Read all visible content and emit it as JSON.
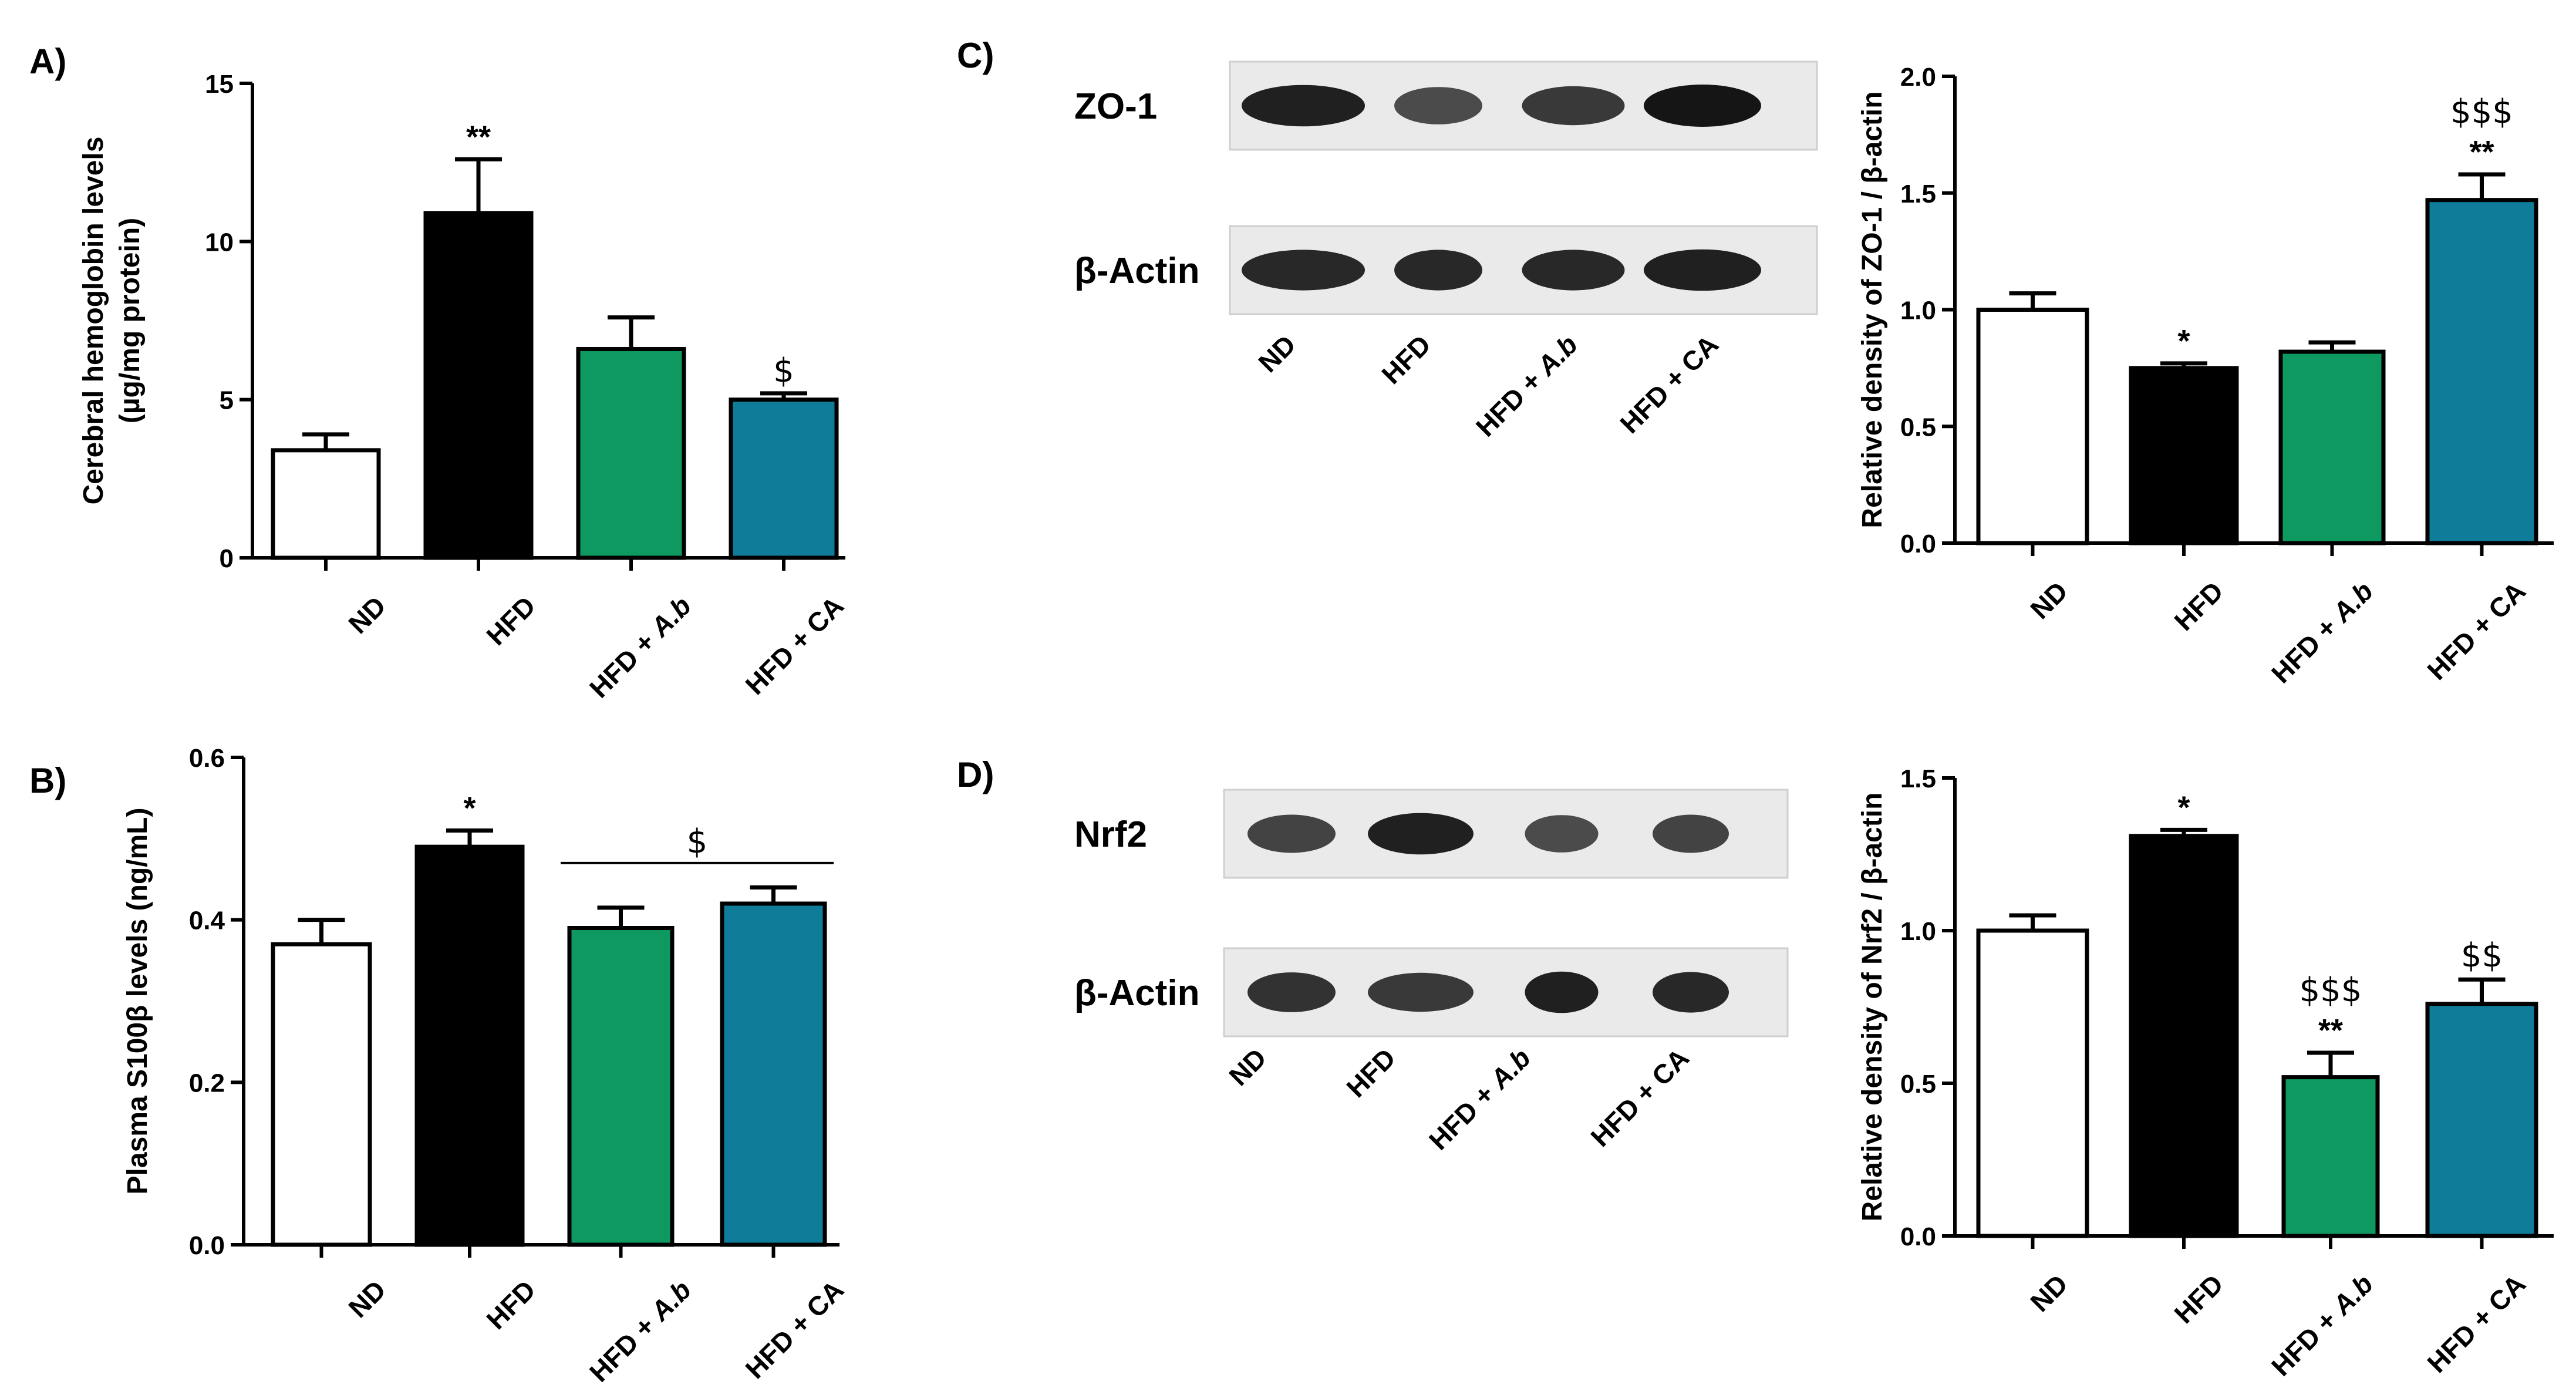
{
  "colors": {
    "ND": "#ffffff",
    "HFD": "#000000",
    "HFD_Ab": "#0e9960",
    "HFD_CA": "#0f7d99"
  },
  "chart_data": [
    {
      "panel": "A)",
      "type": "bar",
      "ylabel_lines": [
        "Cerebral hemoglobin levels",
        "(µg/mg protein)"
      ],
      "categories": [
        "ND",
        "HFD",
        "HFD + A.b",
        "HFD + CA"
      ],
      "values": [
        3.4,
        10.9,
        6.6,
        5.0
      ],
      "errors": [
        0.5,
        1.7,
        1.0,
        0.2
      ],
      "annotations": [
        "",
        "**",
        "",
        "$"
      ],
      "ylim": [
        0,
        15
      ],
      "yticks": [
        0,
        5,
        10,
        15
      ],
      "ytick_labels": [
        "0",
        "5",
        "10",
        "15"
      ]
    },
    {
      "panel": "B)",
      "type": "bar",
      "ylabel": "Plasma S100β levels (ng/mL)",
      "categories": [
        "ND",
        "HFD",
        "HFD + A.b",
        "HFD + CA"
      ],
      "values": [
        0.37,
        0.49,
        0.39,
        0.42
      ],
      "errors": [
        0.03,
        0.02,
        0.025,
        0.02
      ],
      "annotations": [
        "",
        "*",
        "",
        ""
      ],
      "group_annotation": "$",
      "ylim": [
        0,
        0.6
      ],
      "yticks": [
        0,
        0.2,
        0.4,
        0.6
      ],
      "ytick_labels": [
        "0.0",
        "0.2",
        "0.4",
        "0.6"
      ]
    },
    {
      "panel": "C)",
      "type": "bar",
      "ylabel": "Relative density of ZO-1 / β-actin",
      "blot_labels": [
        "ZO-1",
        "β-Actin"
      ],
      "categories": [
        "ND",
        "HFD",
        "HFD + A.b",
        "HFD + CA"
      ],
      "values": [
        1.0,
        0.75,
        0.82,
        1.47
      ],
      "errors": [
        0.07,
        0.02,
        0.04,
        0.11
      ],
      "annotations": [
        "",
        "*",
        "",
        "**"
      ],
      "annotations2": [
        "",
        "",
        "",
        "$$$"
      ],
      "ylim": [
        0,
        2.0
      ],
      "yticks": [
        0,
        0.5,
        1.0,
        1.5,
        2.0
      ],
      "ytick_labels": [
        "0.0",
        "0.5",
        "1.0",
        "1.5",
        "2.0"
      ]
    },
    {
      "panel": "D)",
      "type": "bar",
      "ylabel": "Relative density of Nrf2 / β-actin",
      "blot_labels": [
        "Nrf2",
        "β-Actin"
      ],
      "categories": [
        "ND",
        "HFD",
        "HFD + A.b",
        "HFD + CA"
      ],
      "values": [
        1.0,
        1.31,
        0.52,
        0.76
      ],
      "errors": [
        0.05,
        0.02,
        0.08,
        0.08
      ],
      "annotations": [
        "",
        "*",
        "**",
        ""
      ],
      "annotations2": [
        "",
        "",
        "$$$",
        "$$"
      ],
      "ylim": [
        0,
        1.5
      ],
      "yticks": [
        0,
        0.5,
        1.0,
        1.5
      ],
      "ytick_labels": [
        "0.0",
        "0.5",
        "1.0",
        "1.5"
      ]
    }
  ],
  "blots": [
    {
      "panel": "C)",
      "lane_labels": [
        "ND",
        "HFD",
        "HFD + A.b",
        "HFD + CA"
      ],
      "rows": [
        {
          "label": "ZO-1",
          "intensity": [
            0.95,
            0.7,
            0.8,
            1.0
          ]
        },
        {
          "label": "β-Actin",
          "intensity": [
            0.9,
            0.9,
            0.9,
            0.95
          ]
        }
      ]
    },
    {
      "panel": "D)",
      "lane_labels": [
        "ND",
        "HFD",
        "HFD + A.b",
        "HFD + CA"
      ],
      "rows": [
        {
          "label": "Nrf2",
          "intensity": [
            0.75,
            0.95,
            0.7,
            0.75
          ]
        },
        {
          "label": "β-Actin",
          "intensity": [
            0.85,
            0.8,
            0.95,
            0.9
          ]
        }
      ]
    }
  ]
}
